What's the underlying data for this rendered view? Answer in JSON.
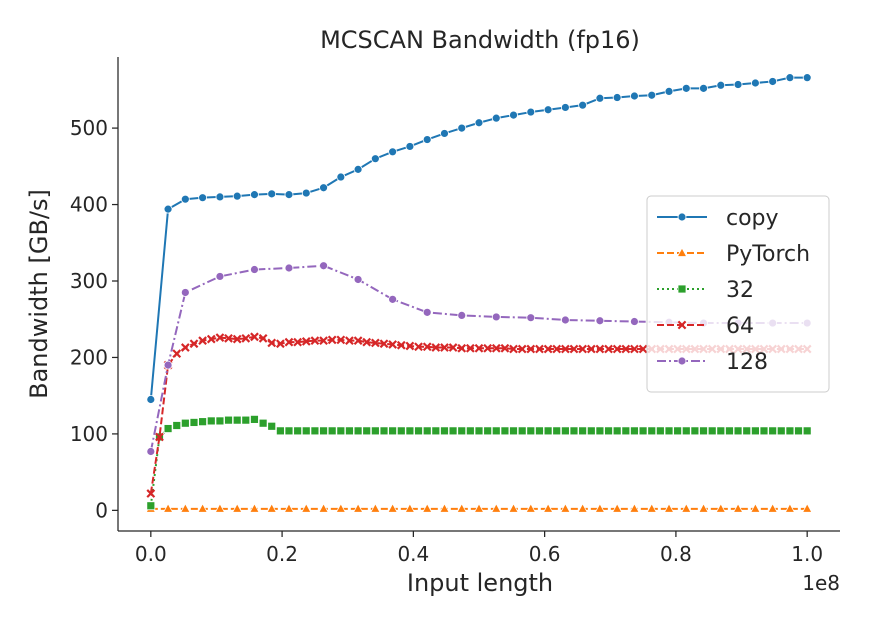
{
  "chart_data": {
    "type": "line",
    "title": "MCSCAN Bandwidth (fp16)",
    "xlabel": "Input length",
    "ylabel": "Bandwidth [GB/s]",
    "x_offset_label": "1e8",
    "xlim": [
      -0.05,
      1.05
    ],
    "ylim": [
      -27,
      593
    ],
    "x_ticks": [
      0.0,
      0.2,
      0.4,
      0.6,
      0.8,
      1.0
    ],
    "x_tick_labels": [
      "0.0",
      "0.2",
      "0.4",
      "0.6",
      "0.8",
      "1.0"
    ],
    "y_ticks": [
      0,
      100,
      200,
      300,
      400,
      500
    ],
    "y_tick_labels": [
      "0",
      "100",
      "200",
      "300",
      "400",
      "500"
    ],
    "legend_position": "center-right",
    "series": [
      {
        "name": "copy",
        "color": "#1f77b4",
        "dash": "solid",
        "marker": "circle",
        "x": [
          0.0,
          0.0263,
          0.0526,
          0.0789,
          0.1053,
          0.1316,
          0.1579,
          0.1842,
          0.2105,
          0.2368,
          0.2632,
          0.2895,
          0.3158,
          0.3421,
          0.3684,
          0.3947,
          0.4211,
          0.4474,
          0.4737,
          0.5,
          0.5263,
          0.5526,
          0.5789,
          0.6053,
          0.6316,
          0.6579,
          0.6842,
          0.7105,
          0.7368,
          0.7632,
          0.7895,
          0.8158,
          0.8421,
          0.8684,
          0.8947,
          0.9211,
          0.9474,
          0.9737,
          1.0
        ],
        "y": [
          145,
          394,
          407,
          409,
          410,
          411,
          413,
          414,
          413,
          415,
          422,
          436,
          446,
          460,
          469,
          476,
          485,
          493,
          500,
          507,
          513,
          517,
          521,
          524,
          527,
          530,
          539,
          540,
          542,
          543,
          548,
          552,
          552,
          556,
          557,
          559,
          561,
          566,
          566
        ]
      },
      {
        "name": "PyTorch",
        "color": "#ff7f0e",
        "dash": "dashed",
        "marker": "triangle",
        "x": [
          0.0,
          0.0263,
          0.0526,
          0.0789,
          0.1053,
          0.1316,
          0.1579,
          0.1842,
          0.2105,
          0.2368,
          0.2632,
          0.2895,
          0.3158,
          0.3421,
          0.3684,
          0.3947,
          0.4211,
          0.4474,
          0.4737,
          0.5,
          0.5263,
          0.5526,
          0.5789,
          0.6053,
          0.6316,
          0.6579,
          0.6842,
          0.7105,
          0.7368,
          0.7632,
          0.7895,
          0.8158,
          0.8421,
          0.8684,
          0.8947,
          0.9211,
          0.9474,
          0.9737,
          1.0
        ],
        "y": [
          2,
          2,
          2,
          2,
          2,
          2,
          2,
          2,
          2,
          2,
          2,
          2,
          2,
          2,
          2,
          2,
          2,
          2,
          2,
          2,
          2,
          2,
          2,
          2,
          2,
          2,
          2,
          2,
          2,
          2,
          2,
          2,
          2,
          2,
          2,
          2,
          2,
          2,
          2
        ]
      },
      {
        "name": "32",
        "color": "#2ca02c",
        "dash": "dotted",
        "marker": "square",
        "x": [
          0.0,
          0.0132,
          0.0263,
          0.0395,
          0.0526,
          0.0658,
          0.0789,
          0.0921,
          0.1053,
          0.1184,
          0.1316,
          0.1447,
          0.1579,
          0.1711,
          0.1842,
          0.1974,
          0.2105,
          0.2237,
          0.2368,
          0.25,
          0.2632,
          0.2763,
          0.2895,
          0.3026,
          0.3158,
          0.3289,
          0.3421,
          0.3553,
          0.3684,
          0.3816,
          0.3947,
          0.4079,
          0.4211,
          0.4342,
          0.4474,
          0.4605,
          0.4737,
          0.4868,
          0.5,
          0.5132,
          0.5263,
          0.5395,
          0.5526,
          0.5658,
          0.5789,
          0.5921,
          0.6053,
          0.6184,
          0.6316,
          0.6447,
          0.6579,
          0.6711,
          0.6842,
          0.6974,
          0.7105,
          0.7237,
          0.7368,
          0.75,
          0.7632,
          0.7763,
          0.7895,
          0.8026,
          0.8158,
          0.8289,
          0.8421,
          0.8553,
          0.8684,
          0.8816,
          0.8947,
          0.9079,
          0.9211,
          0.9342,
          0.9474,
          0.9605,
          0.9737,
          0.9868,
          1.0
        ],
        "y": [
          6,
          96,
          107,
          111,
          114,
          115,
          116,
          117,
          117,
          118,
          118,
          118,
          119,
          114,
          110,
          104,
          104,
          104,
          104,
          104,
          104,
          104,
          104,
          104,
          104,
          104,
          104,
          104,
          104,
          104,
          104,
          104,
          104,
          104,
          104,
          104,
          104,
          104,
          104,
          104,
          104,
          104,
          104,
          104,
          104,
          104,
          104,
          104,
          104,
          104,
          104,
          104,
          104,
          104,
          104,
          104,
          104,
          104,
          104,
          104,
          104,
          104,
          104,
          104,
          104,
          104,
          104,
          104,
          104,
          104,
          104,
          104,
          104,
          104,
          104,
          104,
          104
        ]
      },
      {
        "name": "64",
        "color": "#d62728",
        "dash": "dashed",
        "marker": "x",
        "x": [
          0.0,
          0.0132,
          0.0263,
          0.0395,
          0.0526,
          0.0658,
          0.0789,
          0.0921,
          0.1053,
          0.1184,
          0.1316,
          0.1447,
          0.1579,
          0.1711,
          0.1842,
          0.1974,
          0.2105,
          0.2237,
          0.2368,
          0.25,
          0.2632,
          0.2763,
          0.2895,
          0.3026,
          0.3158,
          0.3289,
          0.3421,
          0.3553,
          0.3684,
          0.3816,
          0.3947,
          0.4079,
          0.4211,
          0.4342,
          0.4474,
          0.4605,
          0.4737,
          0.4868,
          0.5,
          0.5132,
          0.5263,
          0.5395,
          0.5526,
          0.5658,
          0.5789,
          0.5921,
          0.6053,
          0.6184,
          0.6316,
          0.6447,
          0.6579,
          0.6711,
          0.6842,
          0.6974,
          0.7105,
          0.7237,
          0.7368,
          0.75,
          0.7632,
          0.7763,
          0.7895,
          0.8026,
          0.8158,
          0.8289,
          0.8421,
          0.8553,
          0.8684,
          0.8816,
          0.8947,
          0.9079,
          0.9211,
          0.9342,
          0.9474,
          0.9605,
          0.9737,
          0.9868,
          1.0
        ],
        "y": [
          22,
          96,
          190,
          205,
          213,
          218,
          222,
          224,
          226,
          225,
          224,
          225,
          227,
          225,
          219,
          218,
          220,
          220,
          221,
          222,
          222,
          223,
          223,
          222,
          222,
          220,
          219,
          218,
          217,
          216,
          215,
          214,
          214,
          213,
          213,
          213,
          212,
          212,
          212,
          212,
          212,
          212,
          211,
          211,
          211,
          211,
          211,
          211,
          211,
          211,
          211,
          211,
          211,
          211,
          211,
          211,
          211,
          211,
          211,
          211,
          211,
          211,
          211,
          211,
          211,
          211,
          211,
          211,
          211,
          211,
          211,
          211,
          211,
          211,
          211,
          211,
          211
        ]
      },
      {
        "name": "128",
        "color": "#9467bd",
        "dash": "dashdot",
        "marker": "circle",
        "x": [
          0.0,
          0.0263,
          0.0526,
          0.1053,
          0.1579,
          0.2105,
          0.2632,
          0.3158,
          0.3684,
          0.4211,
          0.4737,
          0.5263,
          0.5789,
          0.6316,
          0.6842,
          0.7368,
          0.7895,
          0.8421,
          0.8947,
          0.9474,
          1.0
        ],
        "y": [
          77,
          190,
          285,
          306,
          315,
          317,
          320,
          302,
          276,
          259,
          255,
          253,
          252,
          249,
          248,
          247,
          246,
          245,
          245,
          245,
          245
        ]
      }
    ]
  }
}
